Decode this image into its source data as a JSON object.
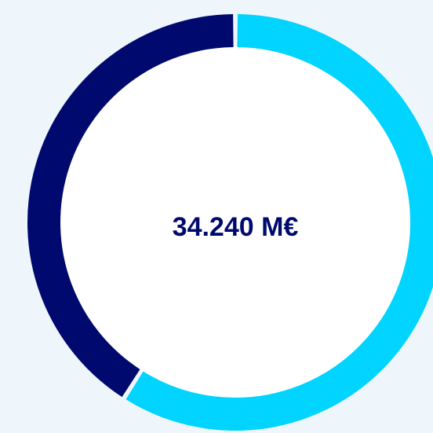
{
  "chart_data": {
    "type": "donut",
    "center_label": "34.240 M€",
    "values": [
      59,
      41
    ],
    "colors": [
      "#00d4ff",
      "#000a6e"
    ]
  }
}
